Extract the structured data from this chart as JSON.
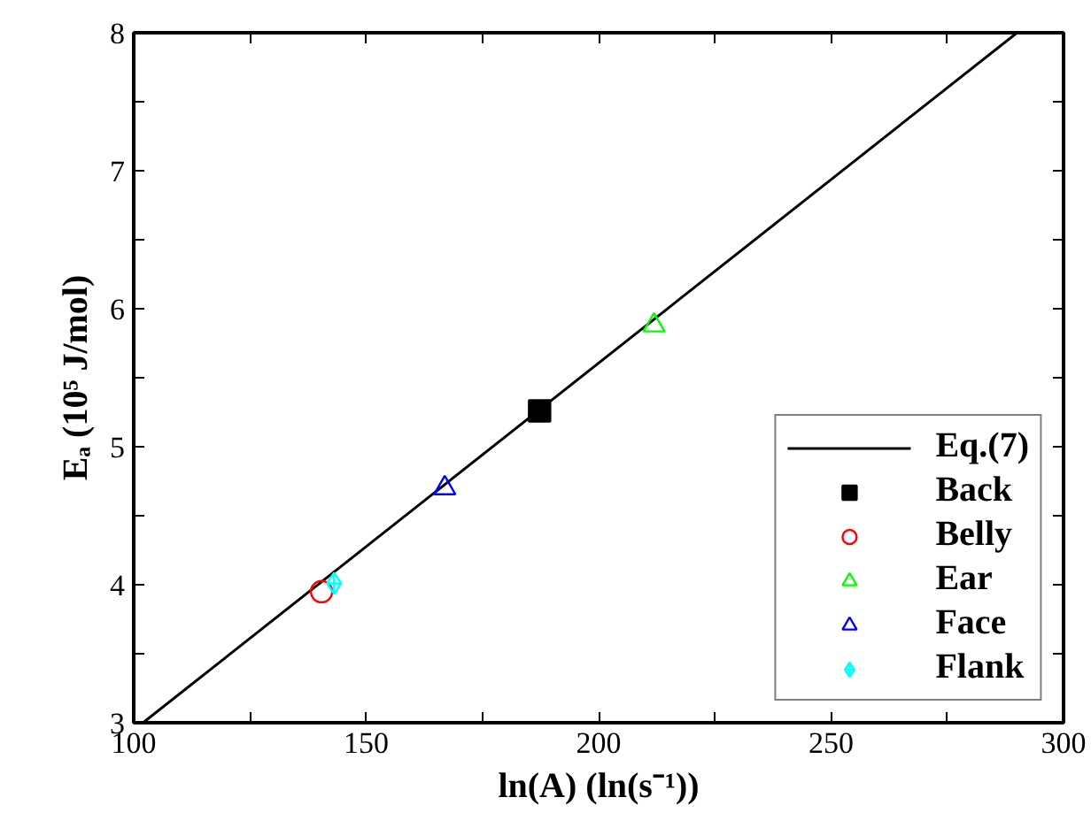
{
  "chart_data": {
    "type": "scatter",
    "xlabel": "ln(A) (ln(s⁻¹))",
    "ylabel": "Eₐ (10⁵ J/mol)",
    "xlim": [
      100,
      300
    ],
    "ylim": [
      3,
      8
    ],
    "xticks": [
      100,
      {
        "value": 125,
        "label": null
      },
      150,
      {
        "value": 175,
        "label": null
      },
      200,
      {
        "value": 225,
        "label": null
      },
      250,
      {
        "value": 275,
        "label": null
      },
      300
    ],
    "yticks": [
      3,
      {
        "value": 3.5,
        "label": null
      },
      4,
      {
        "value": 4.5,
        "label": null
      },
      5,
      {
        "value": 5.5,
        "label": null
      },
      6,
      {
        "value": 6.5,
        "label": null
      },
      7,
      {
        "value": 7.5,
        "label": null
      },
      8
    ],
    "grid": false,
    "legend": "right",
    "series": [
      {
        "name": "Eq.(7)",
        "type": "line",
        "color": "#000000",
        "x": [
          102,
          290
        ],
        "values": [
          3.0,
          8.0
        ]
      },
      {
        "name": "Back",
        "marker": "square",
        "color": "#000000",
        "x": [
          187.3
        ],
        "values": [
          5.26
        ]
      },
      {
        "name": "Belly",
        "marker": "circle",
        "color": "#ff0000",
        "x": [
          140.4
        ],
        "values": [
          3.95
        ]
      },
      {
        "name": "Ear",
        "marker": "triangle",
        "color": "#00ff00",
        "x": [
          211.9
        ],
        "values": [
          5.88
        ]
      },
      {
        "name": "Face",
        "marker": "triangle",
        "color": "#0000ff",
        "x": [
          166.9
        ],
        "values": [
          4.7
        ]
      },
      {
        "name": "Flank",
        "marker": "cross",
        "color": "#00ffff",
        "x": [
          143.1
        ],
        "values": [
          4.01
        ]
      }
    ]
  }
}
